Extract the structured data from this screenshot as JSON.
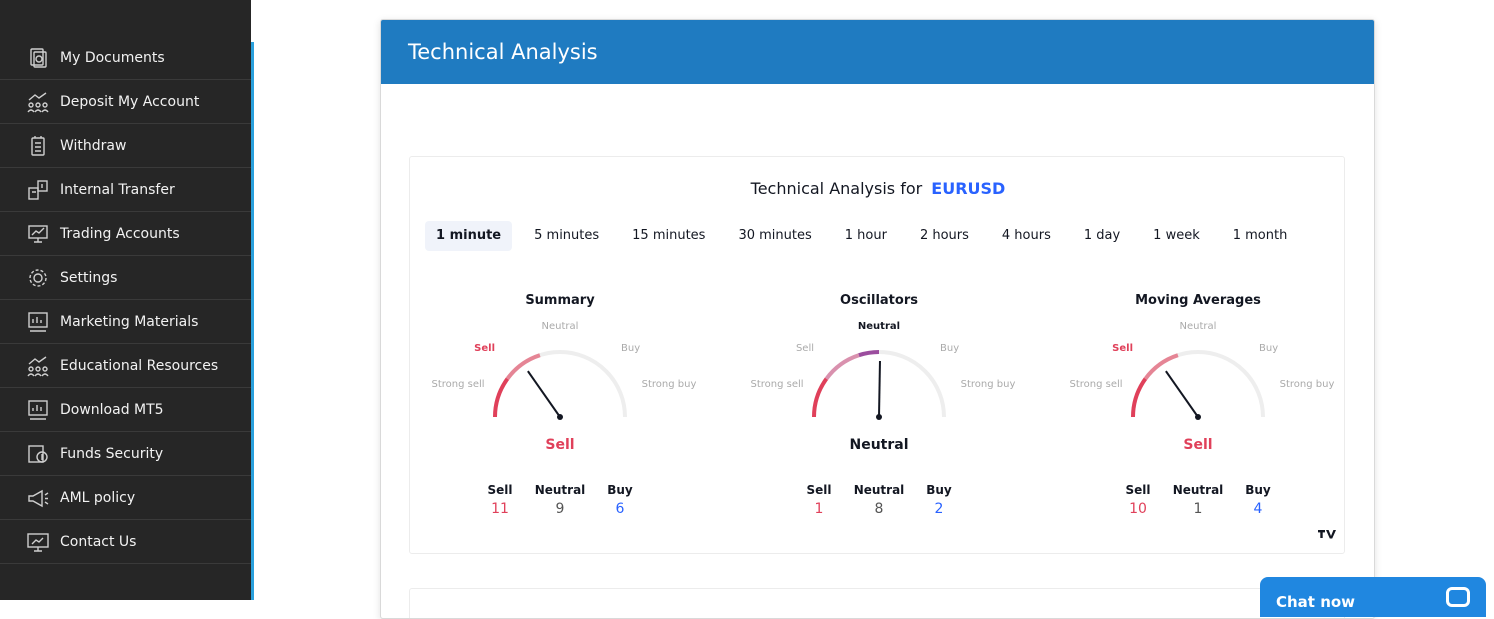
{
  "sidebar": {
    "items": [
      {
        "label": "My Documents",
        "icon": "documents-icon"
      },
      {
        "label": "Deposit My Account",
        "icon": "people-chart-icon"
      },
      {
        "label": "Withdraw",
        "icon": "withdraw-icon"
      },
      {
        "label": "Internal Transfer",
        "icon": "transfer-icon"
      },
      {
        "label": "Trading Accounts",
        "icon": "trading-accounts-icon"
      },
      {
        "label": "Settings",
        "icon": "gear-icon"
      },
      {
        "label": "Marketing Materials",
        "icon": "marketing-icon"
      },
      {
        "label": "Educational Resources",
        "icon": "people-chart-icon"
      },
      {
        "label": "Download MT5",
        "icon": "download-chart-icon"
      },
      {
        "label": "Funds Security",
        "icon": "funds-security-icon"
      },
      {
        "label": "AML policy",
        "icon": "megaphone-icon"
      },
      {
        "label": "Contact Us",
        "icon": "monitor-icon"
      }
    ],
    "accent_color": "#2aa0dc"
  },
  "panel": {
    "title": "Technical Analysis",
    "header_color": "#1f7bc1"
  },
  "widget": {
    "title_prefix": "Technical Analysis for",
    "symbol": "EURUSD",
    "tabs": [
      "1 minute",
      "5 minutes",
      "15 minutes",
      "30 minutes",
      "1 hour",
      "2 hours",
      "4 hours",
      "1 day",
      "1 week",
      "1 month"
    ],
    "active_tab": 0,
    "gauge_labels": {
      "strong_sell": "Strong sell",
      "sell": "Sell",
      "neutral": "Neutral",
      "buy": "Buy",
      "strong_buy": "Strong buy"
    },
    "count_labels": {
      "sell": "Sell",
      "neutral": "Neutral",
      "buy": "Buy"
    },
    "gauges": [
      {
        "title": "Summary",
        "result": "Sell",
        "result_class": "sell",
        "level": "sell",
        "needle_angle": -35,
        "counts": {
          "sell": 11,
          "neutral": 9,
          "buy": 6
        }
      },
      {
        "title": "Oscillators",
        "result": "Neutral",
        "result_class": "neutral-dark",
        "level": "neutral",
        "needle_angle": 1,
        "counts": {
          "sell": 1,
          "neutral": 8,
          "buy": 2
        }
      },
      {
        "title": "Moving Averages",
        "result": "Sell",
        "result_class": "sell",
        "level": "sell",
        "needle_angle": -35,
        "counts": {
          "sell": 10,
          "neutral": 1,
          "buy": 4
        }
      }
    ],
    "colors": {
      "sell": "#e0405a",
      "buy": "#2962ff",
      "neutral": "#555555",
      "track": "#eeeeee",
      "oscillator_arc": "#9b4d9e"
    }
  },
  "chat": {
    "label": "Chat now"
  }
}
